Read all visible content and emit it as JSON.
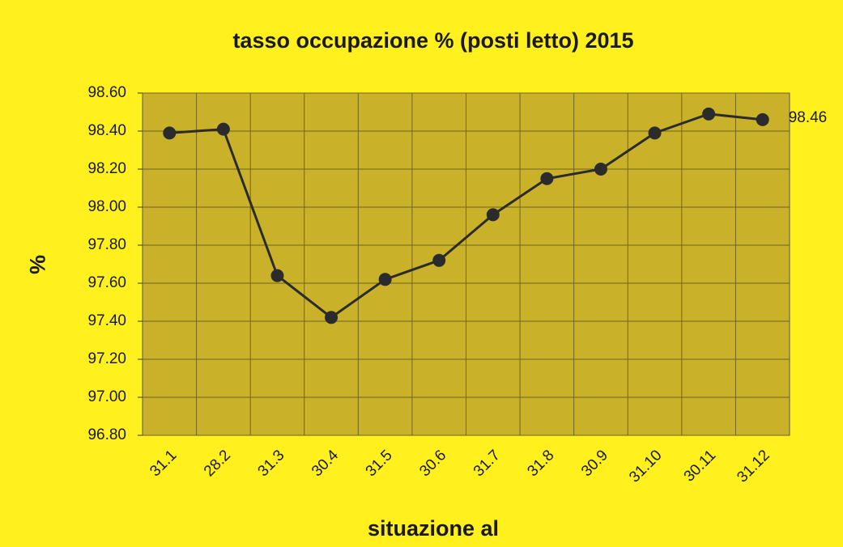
{
  "chart_data": {
    "type": "line",
    "title": "tasso occupazione % (posti letto) 2015",
    "x_label": "situazione al",
    "y_label": "%",
    "categories": [
      "31.1",
      "28.2",
      "31.3",
      "30.4",
      "31.5",
      "30.6",
      "31.7",
      "31.8",
      "30.9",
      "31.10",
      "30.11",
      "31.12"
    ],
    "series": [
      {
        "name": "tasso occupazione %",
        "color": "#2b2b2b",
        "values": [
          98.39,
          98.41,
          97.64,
          97.42,
          97.62,
          97.72,
          97.96,
          98.15,
          98.2,
          98.39,
          98.49,
          98.46
        ],
        "value_labels": [
          null,
          null,
          null,
          null,
          null,
          null,
          null,
          null,
          null,
          null,
          null,
          "98.46"
        ]
      }
    ],
    "ylim": [
      96.8,
      98.6
    ],
    "yticks": [
      {
        "value": 96.8,
        "label": "96.80"
      },
      {
        "value": 97.0,
        "label": "97.00"
      },
      {
        "value": 97.2,
        "label": "97.20"
      },
      {
        "value": 97.4,
        "label": "97.40"
      },
      {
        "value": 97.6,
        "label": "97.60"
      },
      {
        "value": 97.8,
        "label": "97.80"
      },
      {
        "value": 98.0,
        "label": "98.00"
      },
      {
        "value": 98.2,
        "label": "98.20"
      },
      {
        "value": 98.4,
        "label": "98.40"
      },
      {
        "value": 98.6,
        "label": "98.60"
      }
    ],
    "grid": true,
    "plot_color": "#c9b22a"
  }
}
